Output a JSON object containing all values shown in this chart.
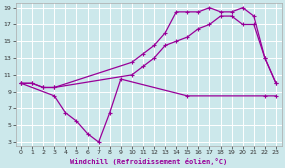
{
  "background_color": "#cce8eb",
  "grid_color": "#ffffff",
  "line_color": "#990099",
  "x_label": "Windchill (Refroidissement éolien,°C)",
  "xlim": [
    -0.5,
    23.5
  ],
  "ylim": [
    2.5,
    19.5
  ],
  "xticks": [
    0,
    1,
    2,
    3,
    4,
    5,
    6,
    7,
    8,
    9,
    10,
    11,
    12,
    13,
    14,
    15,
    16,
    17,
    18,
    19,
    20,
    21,
    22,
    23
  ],
  "yticks": [
    3,
    5,
    7,
    9,
    11,
    13,
    15,
    17,
    19
  ],
  "line1_x": [
    0,
    1,
    2,
    3,
    10,
    11,
    12,
    13,
    14,
    15,
    16,
    17,
    18,
    19,
    20,
    21,
    22,
    23
  ],
  "line1_y": [
    10.0,
    10.0,
    9.5,
    9.5,
    12.5,
    13.5,
    14.5,
    16.0,
    18.5,
    18.5,
    18.5,
    19.0,
    18.5,
    18.5,
    19.0,
    18.0,
    13.0,
    10.0
  ],
  "line2_x": [
    0,
    1,
    2,
    3,
    10,
    11,
    12,
    13,
    14,
    15,
    16,
    17,
    18,
    19,
    20,
    21,
    22,
    23
  ],
  "line2_y": [
    10.0,
    10.0,
    9.5,
    9.5,
    11.0,
    12.0,
    13.0,
    14.5,
    15.0,
    15.5,
    16.5,
    17.0,
    18.0,
    18.0,
    17.0,
    17.0,
    13.0,
    10.0
  ],
  "line3_x": [
    0,
    3,
    4,
    5,
    6,
    7,
    8,
    9,
    15,
    22,
    23
  ],
  "line3_y": [
    10.0,
    8.5,
    6.5,
    5.5,
    4.0,
    3.0,
    6.5,
    10.5,
    8.5,
    8.5,
    8.5
  ]
}
